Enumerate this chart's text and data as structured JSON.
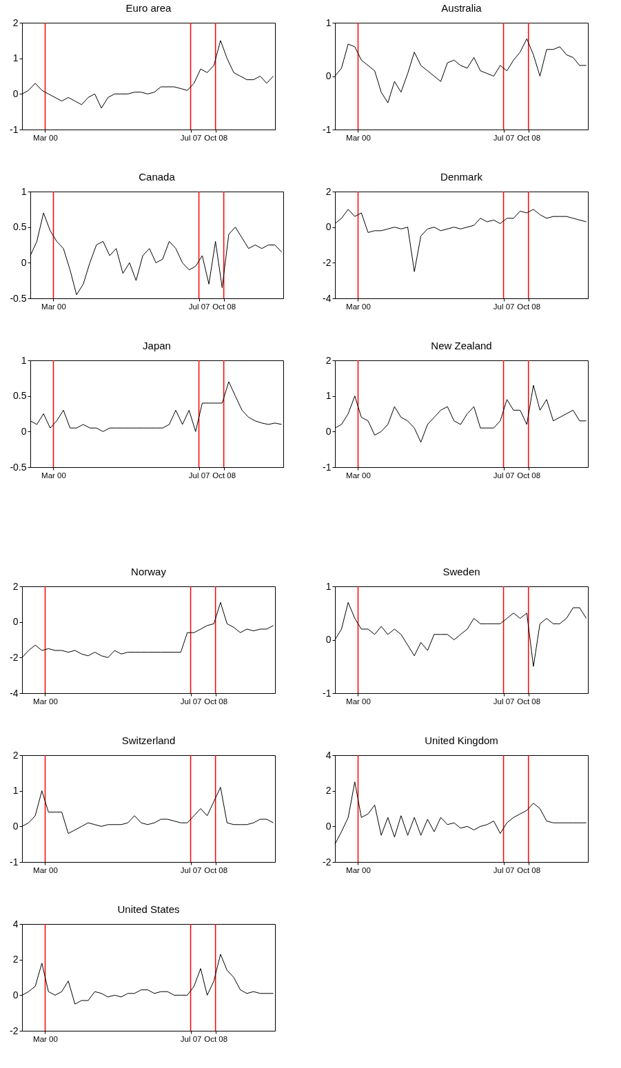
{
  "chart_data": [
    {
      "type": "line",
      "title": "Euro area",
      "x": [
        "1999-01",
        "1999-05",
        "1999-09",
        "2000-01",
        "2000-05",
        "2000-09",
        "2001-01",
        "2001-05",
        "2001-09",
        "2002-01",
        "2002-05",
        "2002-09",
        "2003-01",
        "2003-05",
        "2003-09",
        "2004-01",
        "2004-05",
        "2004-09",
        "2005-01",
        "2005-05",
        "2005-09",
        "2006-01",
        "2006-05",
        "2006-09",
        "2007-01",
        "2007-05",
        "2007-09",
        "2008-01",
        "2008-05",
        "2008-09",
        "2009-01",
        "2009-05",
        "2009-09",
        "2010-01",
        "2010-05",
        "2010-09",
        "2011-01",
        "2011-05",
        "2011-09"
      ],
      "series": [
        {
          "color": "#000000",
          "values": [
            0,
            0.1,
            0.3,
            0.1,
            0,
            -0.1,
            -0.2,
            -0.1,
            -0.2,
            -0.3,
            -0.1,
            0,
            -0.4,
            -0.1,
            0,
            0,
            0,
            0.05,
            0.05,
            0,
            0.05,
            0.2,
            0.2,
            0.2,
            0.15,
            0.1,
            0.3,
            0.7,
            0.6,
            0.8,
            1.5,
            1,
            0.6,
            0.5,
            0.4,
            0.4,
            0.5,
            0.3,
            0.5
          ]
        }
      ],
      "xlim": [
        "1999-01",
        "2011-10"
      ],
      "ylim": [
        -1,
        2
      ],
      "yticks": [
        -1,
        0,
        1,
        2
      ],
      "xticks": [
        {
          "value": "2000-03",
          "label": "Mar 00"
        },
        {
          "value": "2007-07",
          "label": "Jul 07"
        },
        {
          "value": "2008-10",
          "label": "Oct 08"
        }
      ],
      "ref_lines": [
        {
          "axis": "x",
          "value": "2000-03",
          "color": "#ff0000"
        },
        {
          "axis": "x",
          "value": "2007-07",
          "color": "#ff0000"
        },
        {
          "axis": "x",
          "value": "2008-10",
          "color": "#ff0000"
        }
      ]
    },
    {
      "type": "line",
      "title": "Australia",
      "x": [
        "1999-01",
        "1999-05",
        "1999-09",
        "2000-01",
        "2000-05",
        "2000-09",
        "2001-01",
        "2001-05",
        "2001-09",
        "2002-01",
        "2002-05",
        "2002-09",
        "2003-01",
        "2003-05",
        "2003-09",
        "2004-01",
        "2004-05",
        "2004-09",
        "2005-01",
        "2005-05",
        "2005-09",
        "2006-01",
        "2006-05",
        "2006-09",
        "2007-01",
        "2007-05",
        "2007-09",
        "2008-01",
        "2008-05",
        "2008-09",
        "2009-01",
        "2009-05",
        "2009-09",
        "2010-01",
        "2010-05",
        "2010-09",
        "2011-01",
        "2011-05",
        "2011-09"
      ],
      "series": [
        {
          "color": "#000000",
          "values": [
            0,
            0.15,
            0.6,
            0.55,
            0.3,
            0.2,
            0.1,
            -0.3,
            -0.5,
            -0.1,
            -0.3,
            0.05,
            0.45,
            0.2,
            0.1,
            0,
            -0.1,
            0.25,
            0.3,
            0.2,
            0.15,
            0.35,
            0.1,
            0.05,
            0,
            0.2,
            0.1,
            0.3,
            0.45,
            0.7,
            0.4,
            0,
            0.5,
            0.5,
            0.55,
            0.4,
            0.35,
            0.2,
            0.2
          ]
        }
      ],
      "xlim": [
        "1999-01",
        "2011-10"
      ],
      "ylim": [
        -1,
        1
      ],
      "yticks": [
        -1,
        0,
        1
      ],
      "xticks": [
        {
          "value": "2000-03",
          "label": "Mar 00"
        },
        {
          "value": "2007-07",
          "label": "Jul 07"
        },
        {
          "value": "2008-10",
          "label": "Oct 08"
        }
      ],
      "ref_lines": [
        {
          "axis": "x",
          "value": "2000-03",
          "color": "#ff0000"
        },
        {
          "axis": "x",
          "value": "2007-07",
          "color": "#ff0000"
        },
        {
          "axis": "x",
          "value": "2008-10",
          "color": "#ff0000"
        }
      ]
    },
    {
      "type": "line",
      "title": "Canada",
      "x": [
        "1999-01",
        "1999-05",
        "1999-09",
        "2000-01",
        "2000-05",
        "2000-09",
        "2001-01",
        "2001-05",
        "2001-09",
        "2002-01",
        "2002-05",
        "2002-09",
        "2003-01",
        "2003-05",
        "2003-09",
        "2004-01",
        "2004-05",
        "2004-09",
        "2005-01",
        "2005-05",
        "2005-09",
        "2006-01",
        "2006-05",
        "2006-09",
        "2007-01",
        "2007-05",
        "2007-09",
        "2008-01",
        "2008-05",
        "2008-09",
        "2009-01",
        "2009-05",
        "2009-09",
        "2010-01",
        "2010-05",
        "2010-09",
        "2011-01",
        "2011-05",
        "2011-09"
      ],
      "series": [
        {
          "color": "#000000",
          "values": [
            0.1,
            0.3,
            0.7,
            0.45,
            0.3,
            0.2,
            -0.1,
            -0.45,
            -0.3,
            0,
            0.25,
            0.3,
            0.1,
            0.2,
            -0.15,
            0,
            -0.25,
            0.1,
            0.2,
            0,
            0.05,
            0.3,
            0.2,
            0,
            -0.1,
            -0.05,
            0.1,
            -0.3,
            0.3,
            -0.35,
            0.4,
            0.5,
            0.35,
            0.2,
            0.25,
            0.2,
            0.25,
            0.25,
            0.15
          ]
        }
      ],
      "xlim": [
        "1999-01",
        "2011-10"
      ],
      "ylim": [
        -0.5,
        1
      ],
      "yticks": [
        -0.5,
        0,
        0.5,
        1
      ],
      "xticks": [
        {
          "value": "2000-03",
          "label": "Mar 00"
        },
        {
          "value": "2007-07",
          "label": "Jul 07"
        },
        {
          "value": "2008-10",
          "label": "Oct 08"
        }
      ],
      "ref_lines": [
        {
          "axis": "x",
          "value": "2000-03",
          "color": "#ff0000"
        },
        {
          "axis": "x",
          "value": "2007-07",
          "color": "#ff0000"
        },
        {
          "axis": "x",
          "value": "2008-10",
          "color": "#ff0000"
        }
      ]
    },
    {
      "type": "line",
      "title": "Denmark",
      "x": [
        "1999-01",
        "1999-05",
        "1999-09",
        "2000-01",
        "2000-05",
        "2000-09",
        "2001-01",
        "2001-05",
        "2001-09",
        "2002-01",
        "2002-05",
        "2002-09",
        "2003-01",
        "2003-05",
        "2003-09",
        "2004-01",
        "2004-05",
        "2004-09",
        "2005-01",
        "2005-05",
        "2005-09",
        "2006-01",
        "2006-05",
        "2006-09",
        "2007-01",
        "2007-05",
        "2007-09",
        "2008-01",
        "2008-05",
        "2008-09",
        "2009-01",
        "2009-05",
        "2009-09",
        "2010-01",
        "2010-05",
        "2010-09",
        "2011-01",
        "2011-05",
        "2011-09"
      ],
      "series": [
        {
          "color": "#000000",
          "values": [
            0.2,
            0.5,
            1,
            0.6,
            0.8,
            -0.3,
            -0.2,
            -0.2,
            -0.1,
            0,
            -0.1,
            0,
            -2.5,
            -0.5,
            -0.1,
            0,
            -0.2,
            -0.1,
            0,
            -0.1,
            0,
            0.1,
            0.5,
            0.3,
            0.4,
            0.2,
            0.5,
            0.5,
            0.9,
            0.8,
            1,
            0.7,
            0.5,
            0.6,
            0.6,
            0.6,
            0.5,
            0.4,
            0.3
          ]
        }
      ],
      "xlim": [
        "1999-01",
        "2011-10"
      ],
      "ylim": [
        -4,
        2
      ],
      "yticks": [
        -4,
        -2,
        0,
        2
      ],
      "xticks": [
        {
          "value": "2000-03",
          "label": "Mar 00"
        },
        {
          "value": "2007-07",
          "label": "Jul 07"
        },
        {
          "value": "2008-10",
          "label": "Oct 08"
        }
      ],
      "ref_lines": [
        {
          "axis": "x",
          "value": "2000-03",
          "color": "#ff0000"
        },
        {
          "axis": "x",
          "value": "2007-07",
          "color": "#ff0000"
        },
        {
          "axis": "x",
          "value": "2008-10",
          "color": "#ff0000"
        }
      ]
    },
    {
      "type": "line",
      "title": "Japan",
      "x": [
        "1999-01",
        "1999-05",
        "1999-09",
        "2000-01",
        "2000-05",
        "2000-09",
        "2001-01",
        "2001-05",
        "2001-09",
        "2002-01",
        "2002-05",
        "2002-09",
        "2003-01",
        "2003-05",
        "2003-09",
        "2004-01",
        "2004-05",
        "2004-09",
        "2005-01",
        "2005-05",
        "2005-09",
        "2006-01",
        "2006-05",
        "2006-09",
        "2007-01",
        "2007-05",
        "2007-09",
        "2008-01",
        "2008-05",
        "2008-09",
        "2009-01",
        "2009-05",
        "2009-09",
        "2010-01",
        "2010-05",
        "2010-09",
        "2011-01",
        "2011-05",
        "2011-09"
      ],
      "series": [
        {
          "color": "#000000",
          "values": [
            0.15,
            0.1,
            0.25,
            0.05,
            0.15,
            0.3,
            0.05,
            0.05,
            0.1,
            0.05,
            0.05,
            0,
            0.05,
            0.05,
            0.05,
            0.05,
            0.05,
            0.05,
            0.05,
            0.05,
            0.05,
            0.1,
            0.3,
            0.1,
            0.3,
            0,
            0.4,
            0.4,
            0.4,
            0.4,
            0.7,
            0.5,
            0.3,
            0.2,
            0.15,
            0.12,
            0.1,
            0.12,
            0.1
          ]
        }
      ],
      "xlim": [
        "1999-01",
        "2011-10"
      ],
      "ylim": [
        -0.5,
        1
      ],
      "yticks": [
        -0.5,
        0,
        0.5,
        1
      ],
      "xticks": [
        {
          "value": "2000-03",
          "label": "Mar 00"
        },
        {
          "value": "2007-07",
          "label": "Jul 07"
        },
        {
          "value": "2008-10",
          "label": "Oct 08"
        }
      ],
      "ref_lines": [
        {
          "axis": "x",
          "value": "2000-03",
          "color": "#ff0000"
        },
        {
          "axis": "x",
          "value": "2007-07",
          "color": "#ff0000"
        },
        {
          "axis": "x",
          "value": "2008-10",
          "color": "#ff0000"
        }
      ]
    },
    {
      "type": "line",
      "title": "New Zealand",
      "x": [
        "1999-01",
        "1999-05",
        "1999-09",
        "2000-01",
        "2000-05",
        "2000-09",
        "2001-01",
        "2001-05",
        "2001-09",
        "2002-01",
        "2002-05",
        "2002-09",
        "2003-01",
        "2003-05",
        "2003-09",
        "2004-01",
        "2004-05",
        "2004-09",
        "2005-01",
        "2005-05",
        "2005-09",
        "2006-01",
        "2006-05",
        "2006-09",
        "2007-01",
        "2007-05",
        "2007-09",
        "2008-01",
        "2008-05",
        "2008-09",
        "2009-01",
        "2009-05",
        "2009-09",
        "2010-01",
        "2010-05",
        "2010-09",
        "2011-01",
        "2011-05",
        "2011-09"
      ],
      "series": [
        {
          "color": "#000000",
          "values": [
            0.1,
            0.2,
            0.5,
            1,
            0.4,
            0.3,
            -0.1,
            0,
            0.2,
            0.7,
            0.4,
            0.3,
            0.1,
            -0.3,
            0.2,
            0.4,
            0.6,
            0.7,
            0.3,
            0.2,
            0.5,
            0.7,
            0.1,
            0.1,
            0.1,
            0.3,
            0.9,
            0.6,
            0.6,
            0.2,
            1.3,
            0.6,
            0.9,
            0.3,
            0.4,
            0.5,
            0.6,
            0.3,
            0.3
          ]
        }
      ],
      "xlim": [
        "1999-01",
        "2011-10"
      ],
      "ylim": [
        -1,
        2
      ],
      "yticks": [
        -1,
        0,
        1,
        2
      ],
      "xticks": [
        {
          "value": "2000-03",
          "label": "Mar 00"
        },
        {
          "value": "2007-07",
          "label": "Jul 07"
        },
        {
          "value": "2008-10",
          "label": "Oct 08"
        }
      ],
      "ref_lines": [
        {
          "axis": "x",
          "value": "2000-03",
          "color": "#ff0000"
        },
        {
          "axis": "x",
          "value": "2007-07",
          "color": "#ff0000"
        },
        {
          "axis": "x",
          "value": "2008-10",
          "color": "#ff0000"
        }
      ]
    },
    {
      "type": "line",
      "title": "Norway",
      "x": [
        "1999-01",
        "1999-05",
        "1999-09",
        "2000-01",
        "2000-05",
        "2000-09",
        "2001-01",
        "2001-05",
        "2001-09",
        "2002-01",
        "2002-05",
        "2002-09",
        "2003-01",
        "2003-05",
        "2003-09",
        "2004-01",
        "2004-05",
        "2004-09",
        "2005-01",
        "2005-05",
        "2005-09",
        "2006-01",
        "2006-05",
        "2006-09",
        "2007-01",
        "2007-05",
        "2007-09",
        "2008-01",
        "2008-05",
        "2008-09",
        "2009-01",
        "2009-05",
        "2009-09",
        "2010-01",
        "2010-05",
        "2010-09",
        "2011-01",
        "2011-05",
        "2011-09"
      ],
      "series": [
        {
          "color": "#000000",
          "values": [
            -2,
            -1.6,
            -1.3,
            -1.6,
            -1.5,
            -1.6,
            -1.6,
            -1.7,
            -1.6,
            -1.8,
            -1.9,
            -1.7,
            -1.9,
            -2,
            -1.6,
            -1.8,
            -1.7,
            -1.7,
            -1.7,
            -1.7,
            -1.7,
            -1.7,
            -1.7,
            -1.7,
            -1.7,
            -0.6,
            -0.6,
            -0.4,
            -0.2,
            -0.1,
            1.1,
            -0.1,
            -0.3,
            -0.6,
            -0.4,
            -0.5,
            -0.4,
            -0.4,
            -0.2
          ]
        }
      ],
      "xlim": [
        "1999-01",
        "2011-10"
      ],
      "ylim": [
        -4,
        2
      ],
      "yticks": [
        -4,
        -2,
        0,
        2
      ],
      "xticks": [
        {
          "value": "2000-03",
          "label": "Mar 00"
        },
        {
          "value": "2007-07",
          "label": "Jul 07"
        },
        {
          "value": "2008-10",
          "label": "Oct 08"
        }
      ],
      "ref_lines": [
        {
          "axis": "x",
          "value": "2000-03",
          "color": "#ff0000"
        },
        {
          "axis": "x",
          "value": "2007-07",
          "color": "#ff0000"
        },
        {
          "axis": "x",
          "value": "2008-10",
          "color": "#ff0000"
        }
      ]
    },
    {
      "type": "line",
      "title": "Sweden",
      "x": [
        "1999-01",
        "1999-05",
        "1999-09",
        "2000-01",
        "2000-05",
        "2000-09",
        "2001-01",
        "2001-05",
        "2001-09",
        "2002-01",
        "2002-05",
        "2002-09",
        "2003-01",
        "2003-05",
        "2003-09",
        "2004-01",
        "2004-05",
        "2004-09",
        "2005-01",
        "2005-05",
        "2005-09",
        "2006-01",
        "2006-05",
        "2006-09",
        "2007-01",
        "2007-05",
        "2007-09",
        "2008-01",
        "2008-05",
        "2008-09",
        "2009-01",
        "2009-05",
        "2009-09",
        "2010-01",
        "2010-05",
        "2010-09",
        "2011-01",
        "2011-05",
        "2011-09"
      ],
      "series": [
        {
          "color": "#000000",
          "values": [
            0,
            0.2,
            0.7,
            0.4,
            0.2,
            0.2,
            0.1,
            0.25,
            0.1,
            0.2,
            0.1,
            -0.1,
            -0.3,
            -0.05,
            -0.2,
            0.1,
            0.1,
            0.1,
            0,
            0.1,
            0.2,
            0.4,
            0.3,
            0.3,
            0.3,
            0.3,
            0.4,
            0.5,
            0.4,
            0.5,
            -0.5,
            0.3,
            0.4,
            0.3,
            0.3,
            0.4,
            0.6,
            0.6,
            0.4
          ]
        }
      ],
      "xlim": [
        "1999-01",
        "2011-10"
      ],
      "ylim": [
        -1,
        1
      ],
      "yticks": [
        -1,
        0,
        1
      ],
      "xticks": [
        {
          "value": "2000-03",
          "label": "Mar 00"
        },
        {
          "value": "2007-07",
          "label": "Jul 07"
        },
        {
          "value": "2008-10",
          "label": "Oct 08"
        }
      ],
      "ref_lines": [
        {
          "axis": "x",
          "value": "2000-03",
          "color": "#ff0000"
        },
        {
          "axis": "x",
          "value": "2007-07",
          "color": "#ff0000"
        },
        {
          "axis": "x",
          "value": "2008-10",
          "color": "#ff0000"
        }
      ]
    },
    {
      "type": "line",
      "title": "Switzerland",
      "x": [
        "1999-01",
        "1999-05",
        "1999-09",
        "2000-01",
        "2000-05",
        "2000-09",
        "2001-01",
        "2001-05",
        "2001-09",
        "2002-01",
        "2002-05",
        "2002-09",
        "2003-01",
        "2003-05",
        "2003-09",
        "2004-01",
        "2004-05",
        "2004-09",
        "2005-01",
        "2005-05",
        "2005-09",
        "2006-01",
        "2006-05",
        "2006-09",
        "2007-01",
        "2007-05",
        "2007-09",
        "2008-01",
        "2008-05",
        "2008-09",
        "2009-01",
        "2009-05",
        "2009-09",
        "2010-01",
        "2010-05",
        "2010-09",
        "2011-01",
        "2011-05",
        "2011-09"
      ],
      "series": [
        {
          "color": "#000000",
          "values": [
            0,
            0.1,
            0.3,
            1,
            0.4,
            0.4,
            0.4,
            -0.2,
            -0.1,
            0,
            0.1,
            0.05,
            0,
            0.05,
            0.05,
            0.05,
            0.1,
            0.3,
            0.1,
            0.05,
            0.1,
            0.2,
            0.2,
            0.15,
            0.1,
            0.1,
            0.3,
            0.5,
            0.3,
            0.7,
            1.1,
            0.1,
            0.05,
            0.05,
            0.05,
            0.1,
            0.2,
            0.2,
            0.1
          ]
        }
      ],
      "xlim": [
        "1999-01",
        "2011-10"
      ],
      "ylim": [
        -1,
        2
      ],
      "yticks": [
        -1,
        0,
        1,
        2
      ],
      "xticks": [
        {
          "value": "2000-03",
          "label": "Mar 00"
        },
        {
          "value": "2007-07",
          "label": "Jul 07"
        },
        {
          "value": "2008-10",
          "label": "Oct 08"
        }
      ],
      "ref_lines": [
        {
          "axis": "x",
          "value": "2000-03",
          "color": "#ff0000"
        },
        {
          "axis": "x",
          "value": "2007-07",
          "color": "#ff0000"
        },
        {
          "axis": "x",
          "value": "2008-10",
          "color": "#ff0000"
        }
      ]
    },
    {
      "type": "line",
      "title": "United Kingdom",
      "x": [
        "1999-01",
        "1999-05",
        "1999-09",
        "2000-01",
        "2000-05",
        "2000-09",
        "2001-01",
        "2001-05",
        "2001-09",
        "2002-01",
        "2002-05",
        "2002-09",
        "2003-01",
        "2003-05",
        "2003-09",
        "2004-01",
        "2004-05",
        "2004-09",
        "2005-01",
        "2005-05",
        "2005-09",
        "2006-01",
        "2006-05",
        "2006-09",
        "2007-01",
        "2007-05",
        "2007-09",
        "2008-01",
        "2008-05",
        "2008-09",
        "2009-01",
        "2009-05",
        "2009-09",
        "2010-01",
        "2010-05",
        "2010-09",
        "2011-01",
        "2011-05",
        "2011-09"
      ],
      "series": [
        {
          "color": "#000000",
          "values": [
            -1,
            -0.3,
            0.5,
            2.5,
            0.5,
            0.7,
            1.2,
            -0.5,
            0.5,
            -0.6,
            0.6,
            -0.5,
            0.5,
            -0.5,
            0.4,
            -0.3,
            0.5,
            0.1,
            0.2,
            -0.1,
            0,
            -0.2,
            0,
            0.1,
            0.3,
            -0.4,
            0.2,
            0.5,
            0.7,
            0.9,
            1.3,
            1,
            0.3,
            0.2,
            0.2,
            0.2,
            0.2,
            0.2,
            0.2
          ]
        }
      ],
      "xlim": [
        "1999-01",
        "2011-10"
      ],
      "ylim": [
        -2,
        4
      ],
      "yticks": [
        -2,
        0,
        2,
        4
      ],
      "xticks": [
        {
          "value": "2000-03",
          "label": "Mar 00"
        },
        {
          "value": "2007-07",
          "label": "Jul 07"
        },
        {
          "value": "2008-10",
          "label": "Oct 08"
        }
      ],
      "ref_lines": [
        {
          "axis": "x",
          "value": "2000-03",
          "color": "#ff0000"
        },
        {
          "axis": "x",
          "value": "2007-07",
          "color": "#ff0000"
        },
        {
          "axis": "x",
          "value": "2008-10",
          "color": "#ff0000"
        }
      ]
    },
    {
      "type": "line",
      "title": "United States",
      "x": [
        "1999-01",
        "1999-05",
        "1999-09",
        "2000-01",
        "2000-05",
        "2000-09",
        "2001-01",
        "2001-05",
        "2001-09",
        "2002-01",
        "2002-05",
        "2002-09",
        "2003-01",
        "2003-05",
        "2003-09",
        "2004-01",
        "2004-05",
        "2004-09",
        "2005-01",
        "2005-05",
        "2005-09",
        "2006-01",
        "2006-05",
        "2006-09",
        "2007-01",
        "2007-05",
        "2007-09",
        "2008-01",
        "2008-05",
        "2008-09",
        "2009-01",
        "2009-05",
        "2009-09",
        "2010-01",
        "2010-05",
        "2010-09",
        "2011-01",
        "2011-05",
        "2011-09"
      ],
      "series": [
        {
          "color": "#000000",
          "values": [
            0,
            0.2,
            0.5,
            1.8,
            0.2,
            0,
            0.2,
            0.8,
            -0.5,
            -0.3,
            -0.3,
            0.2,
            0.1,
            -0.1,
            0,
            -0.1,
            0.1,
            0.1,
            0.3,
            0.3,
            0.1,
            0.2,
            0.2,
            0,
            0,
            0,
            0.5,
            1.5,
            0,
            0.8,
            2.3,
            1.4,
            1,
            0.3,
            0.1,
            0.2,
            0.1,
            0.1,
            0.1
          ]
        }
      ],
      "xlim": [
        "1999-01",
        "2011-10"
      ],
      "ylim": [
        -2,
        4
      ],
      "yticks": [
        -2,
        0,
        2,
        4
      ],
      "xticks": [
        {
          "value": "2000-03",
          "label": "Mar 00"
        },
        {
          "value": "2007-07",
          "label": "Jul 07"
        },
        {
          "value": "2008-10",
          "label": "Oct 08"
        }
      ],
      "ref_lines": [
        {
          "axis": "x",
          "value": "2000-03",
          "color": "#ff0000"
        },
        {
          "axis": "x",
          "value": "2007-07",
          "color": "#ff0000"
        },
        {
          "axis": "x",
          "value": "2008-10",
          "color": "#ff0000"
        }
      ]
    }
  ]
}
